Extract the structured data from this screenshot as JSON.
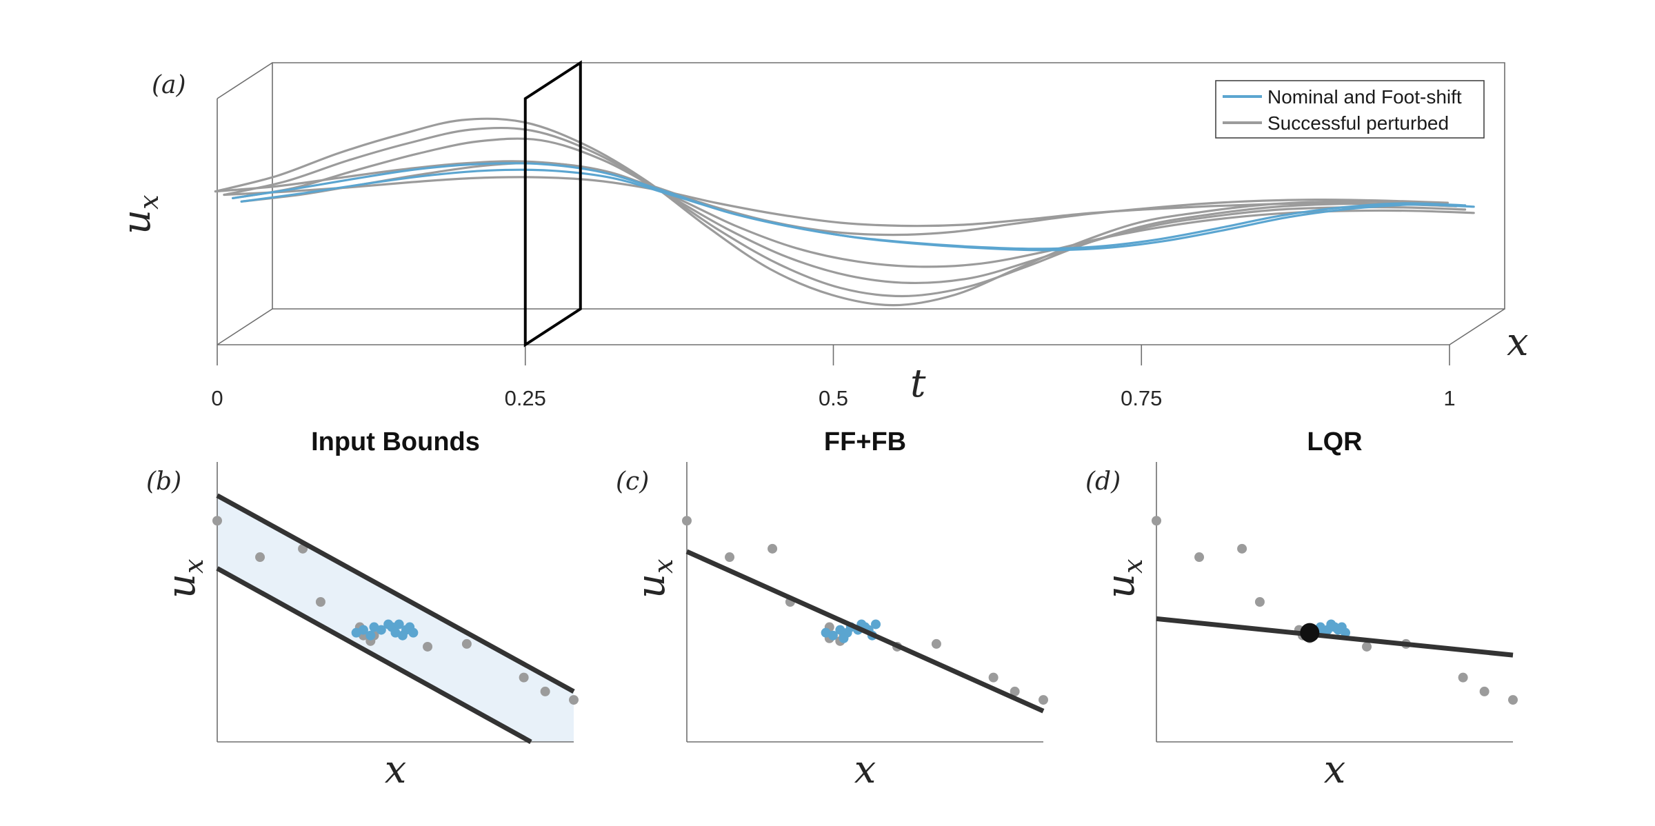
{
  "colors": {
    "nominal": "#5ba5d0",
    "perturbed": "#9b9b9b",
    "fit_line": "#333333",
    "bound_fill": "#e8f1f9",
    "section": "#000000"
  },
  "top_panel": {
    "tag": "(a)",
    "ylabel": "u",
    "ylabel_sub": "x",
    "xlabel": "t",
    "zlabel": "x",
    "ticks": [
      "0",
      "0.25",
      "0.5",
      "0.75",
      "1"
    ],
    "legend": [
      "Nominal and Foot-shift",
      "Successful perturbed"
    ]
  },
  "bottom_panels": [
    {
      "tag": "(b)",
      "title": "Input Bounds",
      "ylabel": "u",
      "ylabel_sub": "x",
      "xlabel": "x"
    },
    {
      "tag": "(c)",
      "title": "FF+FB",
      "ylabel": "u",
      "ylabel_sub": "x",
      "xlabel": "x"
    },
    {
      "tag": "(d)",
      "title": "LQR",
      "ylabel": "u",
      "ylabel_sub": "x",
      "xlabel": "x"
    }
  ],
  "chart_data": [
    {
      "type": "line",
      "panel": "a",
      "xlim": [
        0,
        1
      ],
      "x": [
        0,
        0.05,
        0.1,
        0.15,
        0.2,
        0.25,
        0.3,
        0.35,
        0.4,
        0.45,
        0.5,
        0.55,
        0.6,
        0.65,
        0.7,
        0.75,
        0.8,
        0.85,
        0.9,
        0.95,
        1.0
      ],
      "legend": [
        "Nominal and Foot-shift",
        "Successful perturbed"
      ],
      "section_at_t": 0.25,
      "series": [
        {
          "name": "Successful perturbed",
          "values": [
            0.05,
            0.2,
            0.42,
            0.6,
            0.74,
            0.72,
            0.5,
            0.15,
            -0.3,
            -0.7,
            -0.95,
            -1.05,
            -0.95,
            -0.7,
            -0.45,
            -0.25,
            -0.15,
            -0.08,
            -0.05,
            -0.05,
            -0.08
          ]
        },
        {
          "name": "Successful perturbed",
          "values": [
            0.05,
            0.18,
            0.38,
            0.55,
            0.68,
            0.67,
            0.46,
            0.12,
            -0.28,
            -0.62,
            -0.85,
            -0.93,
            -0.85,
            -0.65,
            -0.42,
            -0.24,
            -0.14,
            -0.07,
            -0.04,
            -0.04,
            -0.06
          ]
        },
        {
          "name": "Successful perturbed",
          "values": [
            0.05,
            0.15,
            0.32,
            0.48,
            0.6,
            0.61,
            0.42,
            0.1,
            -0.24,
            -0.52,
            -0.7,
            -0.77,
            -0.72,
            -0.55,
            -0.36,
            -0.21,
            -0.12,
            -0.06,
            -0.04,
            -0.04,
            -0.06
          ]
        },
        {
          "name": "Successful perturbed",
          "values": [
            0.05,
            0.12,
            0.22,
            0.32,
            0.4,
            0.42,
            0.33,
            0.1,
            -0.18,
            -0.4,
            -0.53,
            -0.58,
            -0.55,
            -0.44,
            -0.3,
            -0.19,
            -0.11,
            -0.06,
            -0.04,
            -0.04,
            -0.06
          ]
        },
        {
          "name": "Successful perturbed",
          "values": [
            0.05,
            0.1,
            0.18,
            0.26,
            0.32,
            0.34,
            0.28,
            0.12,
            -0.08,
            -0.24,
            -0.34,
            -0.37,
            -0.34,
            -0.26,
            -0.18,
            -0.12,
            -0.07,
            -0.04,
            -0.03,
            -0.04,
            -0.06
          ]
        },
        {
          "name": "Successful perturbed",
          "values": [
            0.05,
            0.08,
            0.12,
            0.17,
            0.21,
            0.22,
            0.19,
            0.1,
            -0.03,
            -0.14,
            -0.22,
            -0.25,
            -0.24,
            -0.19,
            -0.13,
            -0.09,
            -0.06,
            -0.04,
            -0.03,
            -0.04,
            -0.06
          ]
        },
        {
          "name": "Nominal and Foot-shift",
          "values": [
            0.05,
            0.14,
            0.24,
            0.33,
            0.38,
            0.38,
            0.3,
            0.12,
            -0.08,
            -0.22,
            -0.32,
            -0.38,
            -0.42,
            -0.44,
            -0.42,
            -0.35,
            -0.24,
            -0.12,
            -0.04,
            0.0,
            -0.02
          ]
        },
        {
          "name": "Nominal and Foot-shift",
          "values": [
            0.05,
            0.13,
            0.22,
            0.3,
            0.35,
            0.35,
            0.28,
            0.11,
            -0.07,
            -0.2,
            -0.3,
            -0.36,
            -0.4,
            -0.42,
            -0.4,
            -0.33,
            -0.22,
            -0.1,
            -0.02,
            0.02,
            0.0
          ]
        }
      ]
    },
    {
      "type": "scatter",
      "panel": "b",
      "title": "Input Bounds",
      "xlim": [
        0,
        10
      ],
      "ylim": [
        0,
        10
      ],
      "perturbed": {
        "x": [
          0.0,
          1.2,
          2.4,
          2.9,
          4.0,
          4.1,
          4.3,
          4.4,
          5.9,
          7.0,
          8.6,
          9.2,
          10.0
        ],
        "y": [
          7.9,
          6.6,
          6.9,
          5.0,
          4.1,
          3.8,
          3.6,
          3.8,
          3.4,
          3.5,
          2.3,
          1.8,
          1.5
        ]
      },
      "nominal": {
        "x": [
          3.9,
          4.1,
          4.3,
          4.4,
          4.6,
          4.8,
          4.9,
          5.0,
          5.1,
          5.3,
          5.4,
          5.5,
          5.2
        ],
        "y": [
          3.9,
          4.0,
          3.8,
          4.1,
          4.0,
          4.2,
          4.1,
          3.9,
          4.2,
          4.0,
          4.1,
          3.9,
          3.8
        ]
      },
      "bounds": [
        {
          "x": [
            0,
            10
          ],
          "y": [
            8.8,
            1.8
          ]
        },
        {
          "x": [
            0,
            8.8
          ],
          "y": [
            6.2,
            0.0
          ]
        }
      ]
    },
    {
      "type": "scatter",
      "panel": "c",
      "title": "FF+FB",
      "xlim": [
        0,
        10
      ],
      "ylim": [
        0,
        10
      ],
      "perturbed": {
        "x": [
          0.0,
          1.2,
          2.4,
          2.9,
          4.0,
          4.0,
          4.3,
          4.4,
          5.9,
          7.0,
          8.6,
          9.2,
          10.0
        ],
        "y": [
          7.9,
          6.6,
          6.9,
          5.0,
          4.1,
          3.7,
          3.6,
          3.8,
          3.4,
          3.5,
          2.3,
          1.8,
          1.5
        ]
      },
      "nominal": {
        "x": [
          3.9,
          4.1,
          4.3,
          4.5,
          4.6,
          4.8,
          4.9,
          5.0,
          5.1,
          5.3,
          5.2,
          4.4
        ],
        "y": [
          3.9,
          3.8,
          4.0,
          3.9,
          4.1,
          4.0,
          4.2,
          4.1,
          4.0,
          4.2,
          3.8,
          3.7
        ]
      },
      "fit_line": {
        "x": [
          0,
          10
        ],
        "y": [
          6.8,
          1.1
        ]
      }
    },
    {
      "type": "scatter",
      "panel": "d",
      "title": "LQR",
      "xlim": [
        0,
        10
      ],
      "ylim": [
        0,
        10
      ],
      "perturbed": {
        "x": [
          0.0,
          1.2,
          2.4,
          2.9,
          4.0,
          4.1,
          4.3,
          4.4,
          5.9,
          7.0,
          8.6,
          9.2,
          10.0
        ],
        "y": [
          7.9,
          6.6,
          6.9,
          5.0,
          4.0,
          3.8,
          3.7,
          3.9,
          3.4,
          3.5,
          2.3,
          1.8,
          1.5
        ]
      },
      "nominal": {
        "x": [
          4.4,
          4.6,
          4.8,
          4.9,
          5.0,
          5.1,
          5.2,
          5.3,
          4.7
        ],
        "y": [
          4.0,
          4.1,
          4.0,
          4.2,
          4.1,
          4.0,
          4.1,
          3.9,
          3.9
        ]
      },
      "highlight": {
        "x": 4.3,
        "y": 3.9
      },
      "fit_line": {
        "x": [
          0,
          10
        ],
        "y": [
          4.4,
          3.1
        ]
      }
    }
  ]
}
